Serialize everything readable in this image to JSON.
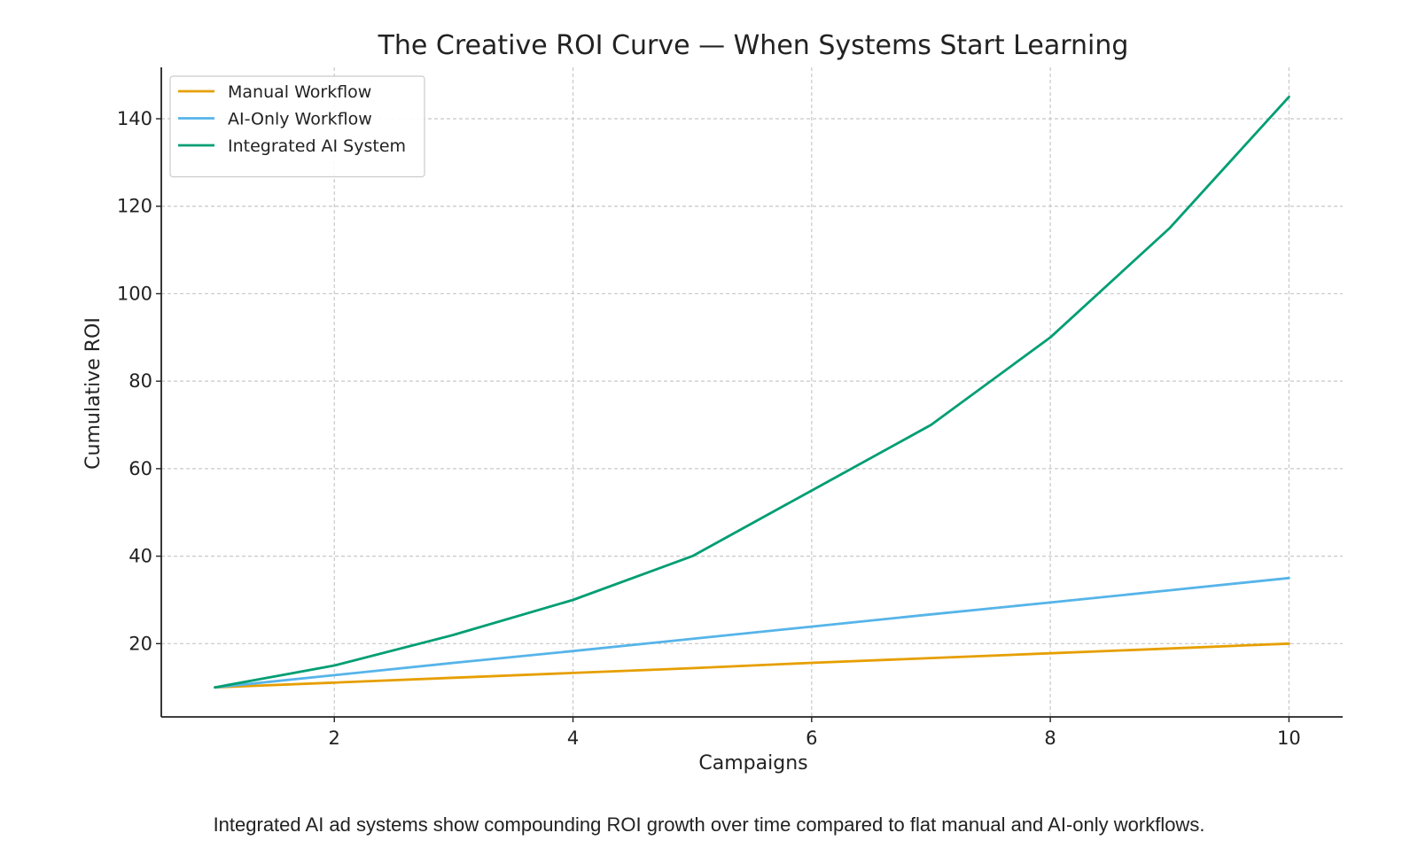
{
  "chart_data": {
    "type": "line",
    "title": "The Creative ROI Curve — When Systems Start Learning",
    "xlabel": "Campaigns",
    "ylabel": "Cumulative ROI",
    "x": [
      1,
      2,
      3,
      4,
      5,
      6,
      7,
      8,
      9,
      10
    ],
    "xlim": [
      0.55,
      10.45
    ],
    "ylim": [
      3.25,
      151.75
    ],
    "xticks": [
      2,
      4,
      6,
      8,
      10
    ],
    "yticks": [
      20,
      40,
      60,
      80,
      100,
      120,
      140
    ],
    "grid": true,
    "legend_position": "top-left",
    "series": [
      {
        "name": "Manual Workflow",
        "color": "#E69F00",
        "values": [
          10,
          11.1,
          12.2,
          13.3,
          14.4,
          15.6,
          16.7,
          17.8,
          18.9,
          20
        ]
      },
      {
        "name": "AI-Only Workflow",
        "color": "#56B4E9",
        "values": [
          10,
          12.8,
          15.6,
          18.3,
          21.1,
          23.9,
          26.7,
          29.4,
          32.2,
          35
        ]
      },
      {
        "name": "Integrated AI System",
        "color": "#009E73",
        "values": [
          10,
          15,
          22,
          30,
          40,
          55,
          70,
          90,
          115,
          145
        ]
      }
    ]
  },
  "caption": "Integrated AI ad systems show compounding ROI growth over time compared to flat manual and AI-only workflows."
}
